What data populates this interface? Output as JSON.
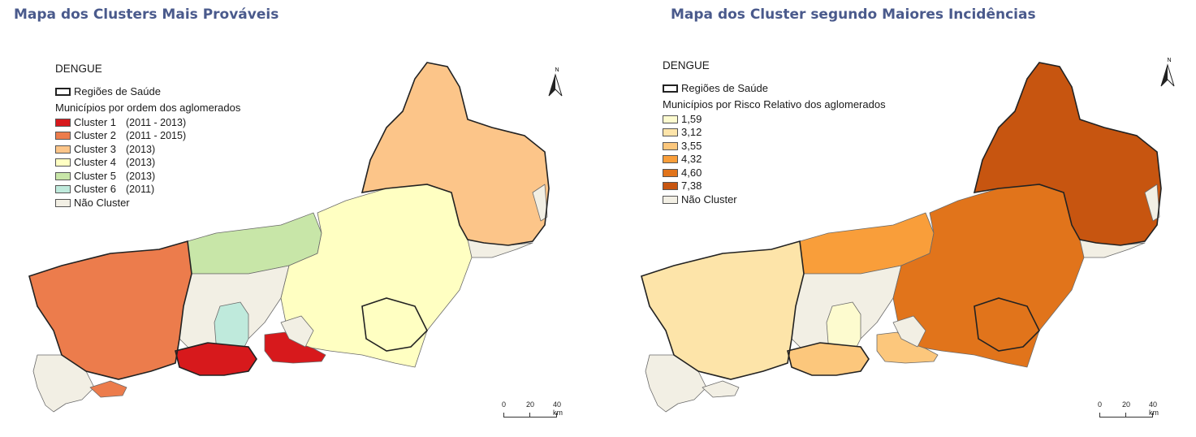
{
  "left_panel": {
    "title": "Mapa dos Clusters Mais Prováveis",
    "map_title": "DENGUE",
    "region_label": "Regiões de Saúde",
    "subtitle": "Municípios por ordem dos aglomerados",
    "legend": [
      {
        "label": "Cluster 1",
        "years": "(2011 - 2013)",
        "color": "#d7191c"
      },
      {
        "label": "Cluster 2",
        "years": "(2011 - 2015)",
        "color": "#ec7c4c"
      },
      {
        "label": "Cluster 3",
        "years": "(2013)",
        "color": "#fcc589"
      },
      {
        "label": "Cluster 4",
        "years": "(2013)",
        "color": "#ffffc2"
      },
      {
        "label": "Cluster 5",
        "years": "(2013)",
        "color": "#c8e6a8"
      },
      {
        "label": "Cluster 6",
        "years": "(2011)",
        "color": "#bfeadc"
      },
      {
        "label": "Não Cluster",
        "years": "",
        "color": "#f2efe4"
      }
    ],
    "north_label": "N",
    "scale": {
      "ticks": [
        "0",
        "20",
        "40 km"
      ]
    }
  },
  "right_panel": {
    "title": "Mapa dos Cluster segundo Maiores Incidências",
    "map_title": "DENGUE",
    "region_label": "Regiões de Saúde",
    "subtitle": "Municípios por Risco Relativo dos aglomerados",
    "legend": [
      {
        "label": "1,59",
        "color": "#fdfbcf"
      },
      {
        "label": "3,12",
        "color": "#fde4a9"
      },
      {
        "label": "3,55",
        "color": "#fcc77c"
      },
      {
        "label": "4,32",
        "color": "#f99e3a"
      },
      {
        "label": "4,60",
        "color": "#e1741b"
      },
      {
        "label": "7,38",
        "color": "#c75510"
      },
      {
        "label": "Não Cluster",
        "color": "#f2efe4"
      }
    ],
    "north_label": "N",
    "scale": {
      "ticks": [
        "0",
        "20",
        "40 km"
      ]
    }
  }
}
